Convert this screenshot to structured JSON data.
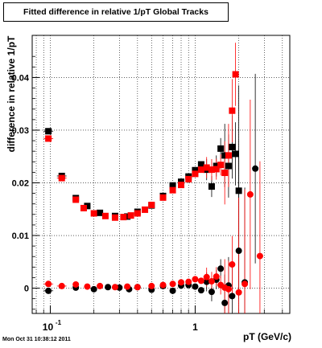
{
  "title": "Fitted difference in relative 1/pT  Global Tracks",
  "timestamp": "Mon Oct 31 10:38:12 2011",
  "chart_data": {
    "type": "scatter",
    "title": "Fitted difference in relative 1/pT  Global Tracks",
    "xlabel": "pT (GeV/c)",
    "ylabel": "difference in relative 1/pT",
    "x_scale": "log",
    "xlim": [
      0.075,
      4.5
    ],
    "ylim": [
      -0.0048,
      0.048
    ],
    "x_tick_labels": [
      "10^-1",
      "1"
    ],
    "y_tick_labels": [
      "0",
      "0.01",
      "0.02",
      "0.03",
      "0.04"
    ],
    "grid": true,
    "series": [
      {
        "color": "#000000",
        "marker": "square",
        "x": [
          0.097,
          0.12,
          0.15,
          0.18,
          0.22,
          0.28,
          0.34,
          0.4,
          0.5,
          0.6,
          0.7,
          0.8,
          0.9,
          1.0,
          1.1,
          1.2,
          1.3,
          1.4,
          1.5,
          1.6,
          1.7,
          1.8,
          1.9,
          2.0
        ],
        "y": [
          0.0298,
          0.0213,
          0.0171,
          0.0156,
          0.0143,
          0.0137,
          0.0136,
          0.0145,
          0.0157,
          0.0175,
          0.0195,
          0.0202,
          0.0212,
          0.0224,
          0.0235,
          0.0225,
          0.0193,
          0.0232,
          0.0265,
          0.0252,
          0.0232,
          0.0268,
          0.0255,
          0.0185
        ]
      },
      {
        "color": "#ff0000",
        "marker": "square",
        "x": [
          0.097,
          0.12,
          0.15,
          0.17,
          0.2,
          0.24,
          0.28,
          0.32,
          0.36,
          0.4,
          0.45,
          0.5,
          0.6,
          0.7,
          0.8,
          0.9,
          1.0,
          1.1,
          1.2,
          1.3,
          1.4,
          1.5,
          1.6,
          1.7,
          1.8,
          1.9
        ],
        "y": [
          0.0284,
          0.0209,
          0.0168,
          0.0152,
          0.0142,
          0.0137,
          0.0134,
          0.0135,
          0.0138,
          0.0142,
          0.0149,
          0.0158,
          0.0172,
          0.0186,
          0.0196,
          0.0207,
          0.0217,
          0.0225,
          0.0229,
          0.0225,
          0.0226,
          0.0234,
          0.0219,
          0.0252,
          0.0337,
          0.0406
        ]
      },
      {
        "color": "#000000",
        "marker": "circle",
        "x": [
          0.097,
          0.15,
          0.2,
          0.25,
          0.3,
          0.35,
          0.4,
          0.5,
          0.6,
          0.7,
          0.8,
          0.9,
          1.0,
          1.1,
          1.2,
          1.3,
          1.4,
          1.5,
          1.6,
          1.7,
          1.8,
          2.0,
          2.2,
          2.6
        ],
        "y": [
          -0.0005,
          0.0001,
          -0.0002,
          0.0002,
          0.0001,
          -0.0002,
          0.0002,
          -0.0003,
          0.0004,
          -0.0005,
          0.0005,
          0.0006,
          0.0003,
          -0.0004,
          0.0012,
          -0.0007,
          0.0016,
          0.0037,
          -0.0028,
          0.0005,
          -0.0015,
          0.0071,
          0.0011,
          0.0227
        ]
      },
      {
        "color": "#ff0000",
        "marker": "circle",
        "x": [
          0.097,
          0.12,
          0.15,
          0.18,
          0.22,
          0.28,
          0.34,
          0.4,
          0.5,
          0.6,
          0.7,
          0.8,
          0.9,
          1.0,
          1.1,
          1.2,
          1.3,
          1.4,
          1.5,
          1.6,
          1.7,
          1.8,
          2.0,
          2.2,
          2.4,
          2.8
        ],
        "y": [
          0.0008,
          0.0004,
          0.0007,
          0.0003,
          0.0004,
          0.0002,
          0.0003,
          0.0002,
          0.0004,
          0.0006,
          0.0008,
          0.0011,
          0.0012,
          0.0017,
          0.0014,
          0.0021,
          0.0013,
          0.0022,
          0.0006,
          0.0001,
          -0.0002,
          0.0045,
          -0.0008,
          0.0008,
          0.0178,
          0.0061
        ]
      }
    ]
  }
}
